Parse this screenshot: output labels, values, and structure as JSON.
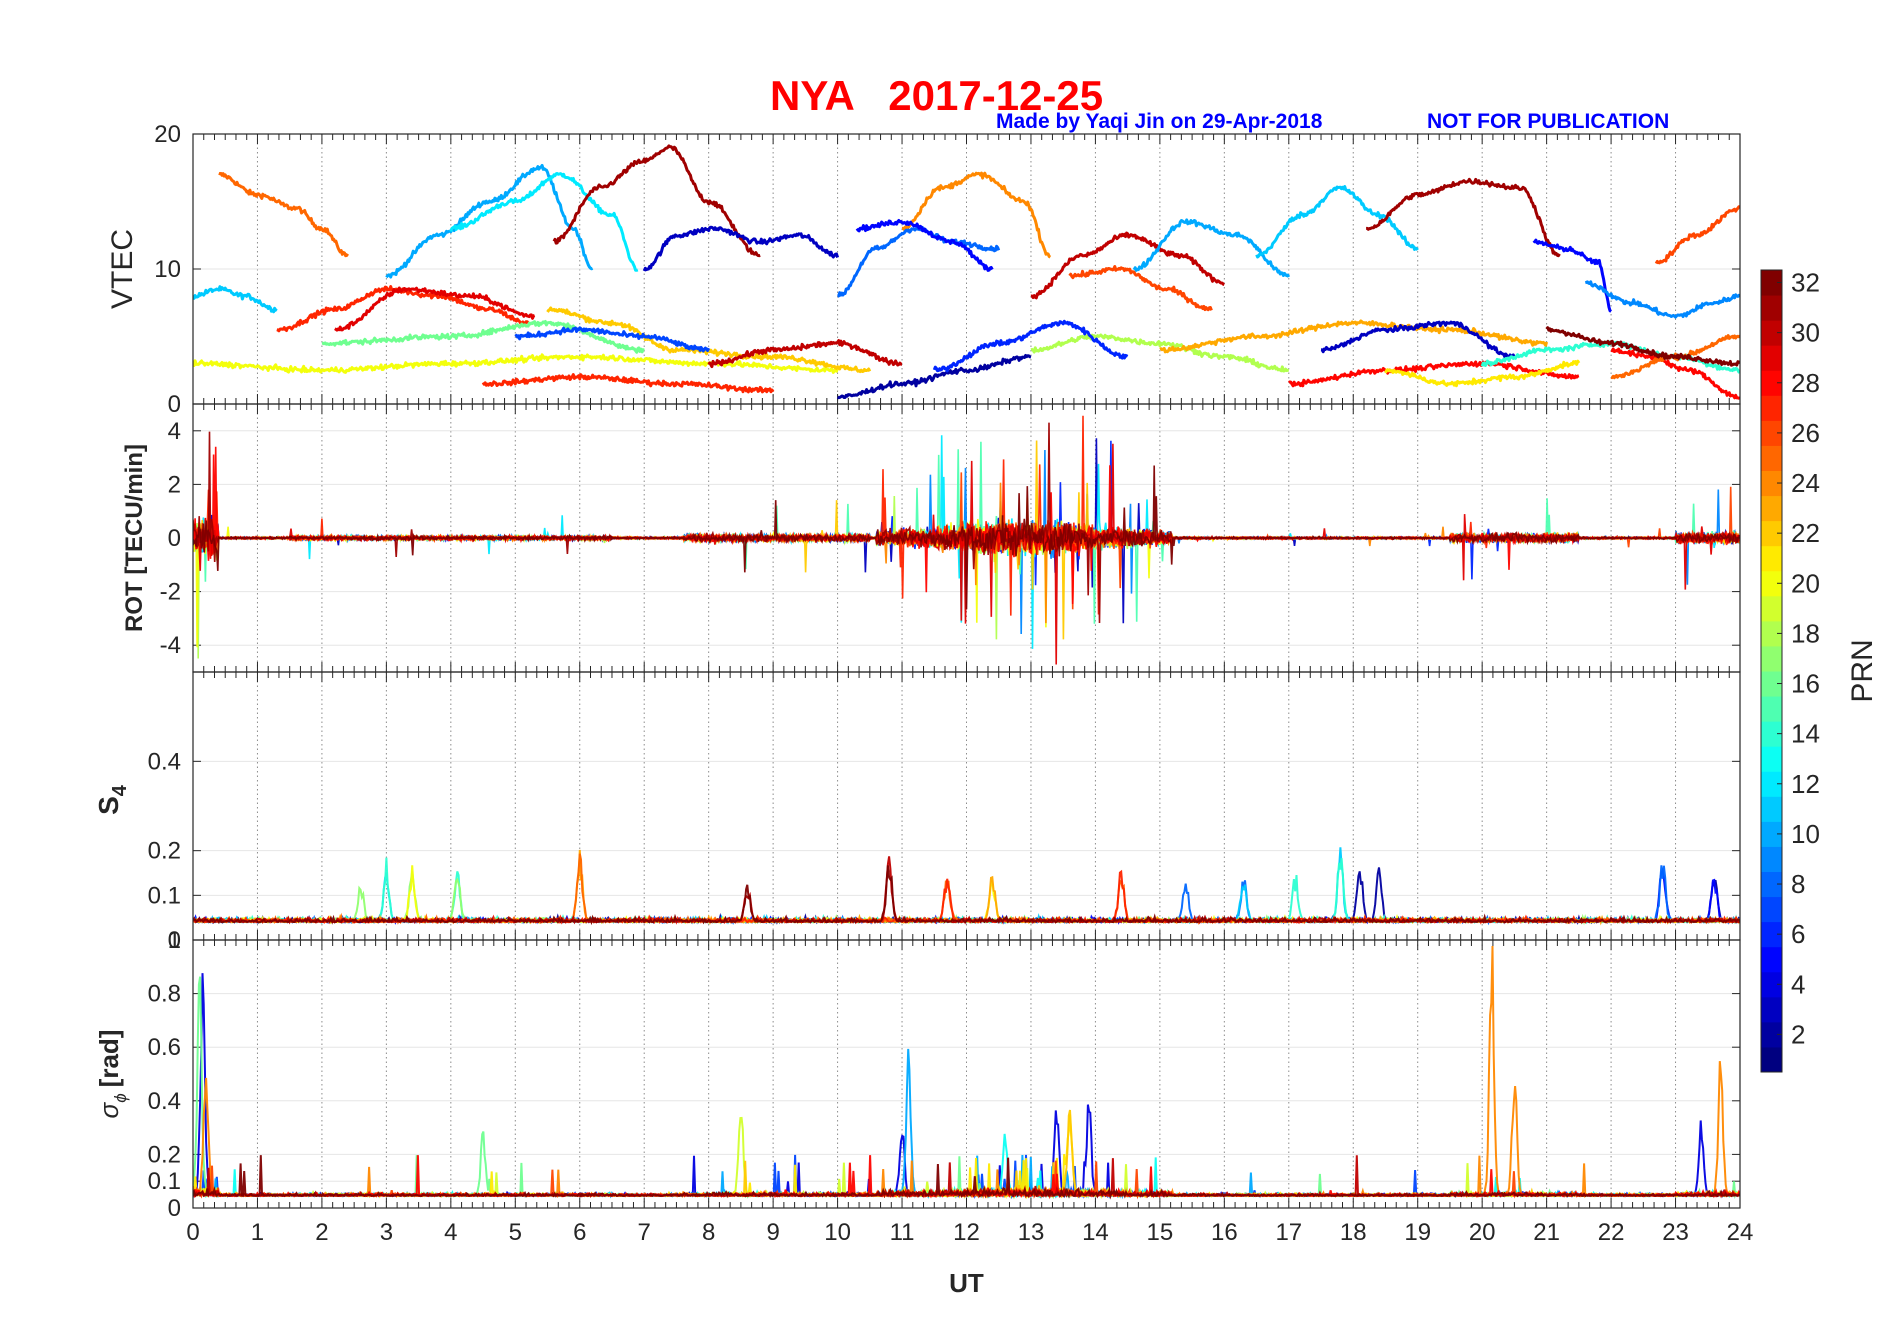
{
  "header": {
    "title": "NYA   2017-12-25",
    "made_by": "Made by Yaqi Jin on 29-Apr-2018",
    "notice": "NOT FOR PUBLICATION"
  },
  "colors": {
    "title": "#ff0000",
    "notice": "#0000ff",
    "grid": "#d9d9d9",
    "axis": "#262626"
  },
  "chart_data": [
    {
      "type": "line",
      "panel": "VTEC",
      "ylabel": "VTEC",
      "ylim": [
        0,
        20
      ],
      "yticks": [
        "0",
        "10",
        "20"
      ],
      "xlim": [
        0,
        24
      ],
      "series_description": "32 PRN satellite tracks colored by PRN",
      "series": [
        {
          "prn": 25,
          "x": [
            0.4,
            1.0,
            1.6,
            2.0,
            2.4
          ],
          "y": [
            17,
            15.5,
            14.5,
            13,
            11
          ]
        },
        {
          "prn": 11,
          "x": [
            0.0,
            0.4,
            0.8,
            1.3
          ],
          "y": [
            8,
            8.5,
            8,
            7
          ]
        },
        {
          "prn": 10,
          "x": [
            3.0,
            3.8,
            4.6,
            5.4,
            5.9,
            6.2
          ],
          "y": [
            9.5,
            12.5,
            15,
            17.5,
            13,
            10
          ]
        },
        {
          "prn": 12,
          "x": [
            4.0,
            5.0,
            5.7,
            6.5,
            6.9
          ],
          "y": [
            13,
            15,
            17,
            14,
            10
          ]
        },
        {
          "prn": 31,
          "x": [
            5.6,
            6.3,
            7.0,
            7.4,
            8.0,
            8.8
          ],
          "y": [
            12,
            16,
            18,
            19,
            15,
            11
          ]
        },
        {
          "prn": 3,
          "x": [
            7.0,
            7.5,
            8.1,
            8.8,
            9.4,
            10.0
          ],
          "y": [
            10,
            12.5,
            13,
            12,
            12.5,
            11
          ]
        },
        {
          "prn": 27,
          "x": [
            1.3,
            2.2,
            3.0,
            3.8,
            4.6,
            5.2
          ],
          "y": [
            5.5,
            7,
            8.5,
            8,
            7,
            6
          ]
        },
        {
          "prn": 29,
          "x": [
            2.2,
            3.3,
            4.3,
            5.3
          ],
          "y": [
            5.5,
            8.5,
            8,
            6.5
          ]
        },
        {
          "prn": 24,
          "x": [
            11.0,
            11.6,
            12.2,
            12.9,
            13.3
          ],
          "y": [
            13,
            16,
            17,
            15,
            11
          ]
        },
        {
          "prn": 8,
          "x": [
            10.0,
            10.6,
            11.2,
            11.8,
            12.5
          ],
          "y": [
            8,
            11.5,
            13,
            12,
            11.5
          ]
        },
        {
          "prn": 5,
          "x": [
            10.3,
            11.0,
            11.8,
            12.4
          ],
          "y": [
            13,
            13.5,
            12,
            10
          ]
        },
        {
          "prn": 30,
          "x": [
            13.0,
            13.8,
            14.5,
            15.3,
            16.0
          ],
          "y": [
            8,
            11,
            12.5,
            11,
            9
          ]
        },
        {
          "prn": 26,
          "x": [
            13.6,
            14.4,
            15.1,
            15.8
          ],
          "y": [
            9.5,
            10,
            8.5,
            7
          ]
        },
        {
          "prn": 10,
          "x": [
            14.6,
            15.4,
            16.2,
            17.0
          ],
          "y": [
            10,
            13.5,
            12.5,
            9.5
          ]
        },
        {
          "prn": 11,
          "x": [
            16.5,
            17.2,
            17.8,
            18.4,
            19.0
          ],
          "y": [
            11,
            14,
            16,
            14,
            11.5
          ]
        },
        {
          "prn": 31,
          "x": [
            18.2,
            19.0,
            19.8,
            20.6,
            21.2
          ],
          "y": [
            13,
            15.5,
            16.5,
            16,
            11
          ]
        },
        {
          "prn": 5,
          "x": [
            20.8,
            21.3,
            21.8,
            22.0
          ],
          "y": [
            12,
            11.5,
            10.5,
            7
          ]
        },
        {
          "prn": 9,
          "x": [
            21.6,
            22.3,
            23.0,
            23.6,
            24.0
          ],
          "y": [
            9,
            7.5,
            6.5,
            7.5,
            8
          ]
        },
        {
          "prn": 26,
          "x": [
            22.7,
            23.3,
            24.0
          ],
          "y": [
            10.5,
            12.5,
            14.5
          ]
        },
        {
          "prn": 28,
          "x": [
            22.0,
            22.6,
            23.2,
            24.0
          ],
          "y": [
            4,
            3.5,
            2.5,
            0.5
          ]
        },
        {
          "prn": 2,
          "x": [
            10.0,
            11.0,
            12.0,
            13.0
          ],
          "y": [
            0.5,
            1.5,
            2.5,
            3.5
          ]
        },
        {
          "prn": 20,
          "x": [
            0.0,
            2.0,
            4.0,
            6.0,
            8.0,
            10.0
          ],
          "y": [
            3,
            2.5,
            3,
            3.5,
            3,
            2.5
          ]
        },
        {
          "prn": 16,
          "x": [
            2.0,
            4.0,
            5.5,
            7.0
          ],
          "y": [
            4.5,
            5,
            6,
            4
          ]
        },
        {
          "prn": 22,
          "x": [
            5.5,
            6.5,
            7.5,
            9.0,
            10.5
          ],
          "y": [
            7,
            6,
            4,
            3.5,
            2.5
          ]
        },
        {
          "prn": 7,
          "x": [
            5.0,
            6.0,
            7.0,
            8.0
          ],
          "y": [
            5,
            5.5,
            5,
            4
          ]
        },
        {
          "prn": 30,
          "x": [
            8.0,
            9.0,
            10.0,
            11.0
          ],
          "y": [
            3,
            4,
            4.5,
            3
          ]
        },
        {
          "prn": 27,
          "x": [
            4.5,
            6.0,
            7.5,
            9.0
          ],
          "y": [
            1.5,
            2,
            1.5,
            1
          ]
        },
        {
          "prn": 18,
          "x": [
            13.0,
            14.0,
            15.0,
            16.0,
            17.0
          ],
          "y": [
            4,
            5,
            4.5,
            3.5,
            2.5
          ]
        },
        {
          "prn": 6,
          "x": [
            11.5,
            12.5,
            13.5,
            14.5
          ],
          "y": [
            2.5,
            4.5,
            6,
            3.5
          ]
        },
        {
          "prn": 23,
          "x": [
            15.0,
            16.5,
            18.0,
            19.5,
            21.0
          ],
          "y": [
            4,
            5,
            6,
            5.5,
            4.5
          ]
        },
        {
          "prn": 3,
          "x": [
            17.5,
            18.5,
            19.5,
            20.5
          ],
          "y": [
            4,
            5.5,
            6,
            3.5
          ]
        },
        {
          "prn": 28,
          "x": [
            17.0,
            18.5,
            20.0,
            21.5
          ],
          "y": [
            1.5,
            2.5,
            3,
            2
          ]
        },
        {
          "prn": 21,
          "x": [
            18.5,
            19.5,
            20.5,
            21.5
          ],
          "y": [
            2.5,
            1.5,
            2,
            3
          ]
        },
        {
          "prn": 14,
          "x": [
            20.0,
            21.0,
            22.0,
            23.0,
            24.0
          ],
          "y": [
            3,
            4,
            4.5,
            3.5,
            2.5
          ]
        },
        {
          "prn": 25,
          "x": [
            22.0,
            23.0,
            24.0
          ],
          "y": [
            2,
            3.5,
            5
          ]
        },
        {
          "prn": 32,
          "x": [
            21.0,
            22.0,
            23.0,
            24.0
          ],
          "y": [
            5.5,
            4.5,
            3.5,
            3
          ]
        }
      ]
    },
    {
      "type": "line",
      "panel": "ROT",
      "ylabel": "ROT [TECU/min]",
      "ylim": [
        -5,
        5
      ],
      "yticks": [
        "-4",
        "-2",
        "0",
        "2",
        "4"
      ],
      "xlim": [
        0,
        24
      ]
    },
    {
      "type": "line",
      "panel": "S4",
      "ylabel": "S4",
      "ylim": [
        0,
        0.6
      ],
      "yticks": [
        "0",
        "0.1",
        "0.2",
        "0.4"
      ],
      "xlim": [
        0,
        24
      ]
    },
    {
      "type": "line",
      "panel": "sigma_phi",
      "ylabel": "[rad]",
      "ylim": [
        0,
        1
      ],
      "yticks": [
        "0",
        "0.1",
        "0.2",
        "0.4",
        "0.6",
        "0.8",
        "1"
      ],
      "xlim": [
        0,
        24
      ],
      "xlabel": "UT",
      "xticks": [
        "0",
        "1",
        "2",
        "3",
        "4",
        "5",
        "6",
        "7",
        "8",
        "9",
        "10",
        "11",
        "12",
        "13",
        "14",
        "15",
        "16",
        "17",
        "18",
        "19",
        "20",
        "21",
        "22",
        "23",
        "24"
      ]
    }
  ],
  "colorbar": {
    "label": "PRN",
    "range": [
      1,
      32
    ],
    "ticks": [
      "2",
      "4",
      "6",
      "8",
      "10",
      "12",
      "14",
      "16",
      "18",
      "20",
      "22",
      "24",
      "26",
      "28",
      "30",
      "32"
    ],
    "colormap": "jet",
    "levels": 32
  }
}
